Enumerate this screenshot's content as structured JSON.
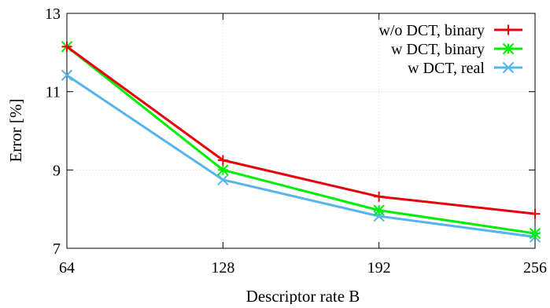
{
  "chart_data": {
    "type": "line",
    "x": [
      64,
      128,
      192,
      256
    ],
    "xlabel": "Descriptor rate B",
    "ylabel": "Error [%]",
    "xlim": [
      64,
      256
    ],
    "ylim": [
      7,
      13
    ],
    "xticks": [
      64,
      128,
      192,
      256
    ],
    "yticks": [
      7,
      9,
      11,
      13
    ],
    "grid": true,
    "legend_position": "top-right",
    "series": [
      {
        "name": "w/o DCT, binary",
        "values": [
          12.15,
          9.25,
          8.32,
          7.88
        ],
        "color": "#e8000b",
        "marker": "plus"
      },
      {
        "name": "w DCT, binary",
        "values": [
          12.15,
          9.0,
          7.97,
          7.38
        ],
        "color": "#00ee00",
        "marker": "star"
      },
      {
        "name": "w DCT, real",
        "values": [
          11.42,
          8.75,
          7.82,
          7.29
        ],
        "color": "#56b4e9",
        "marker": "x"
      }
    ]
  }
}
